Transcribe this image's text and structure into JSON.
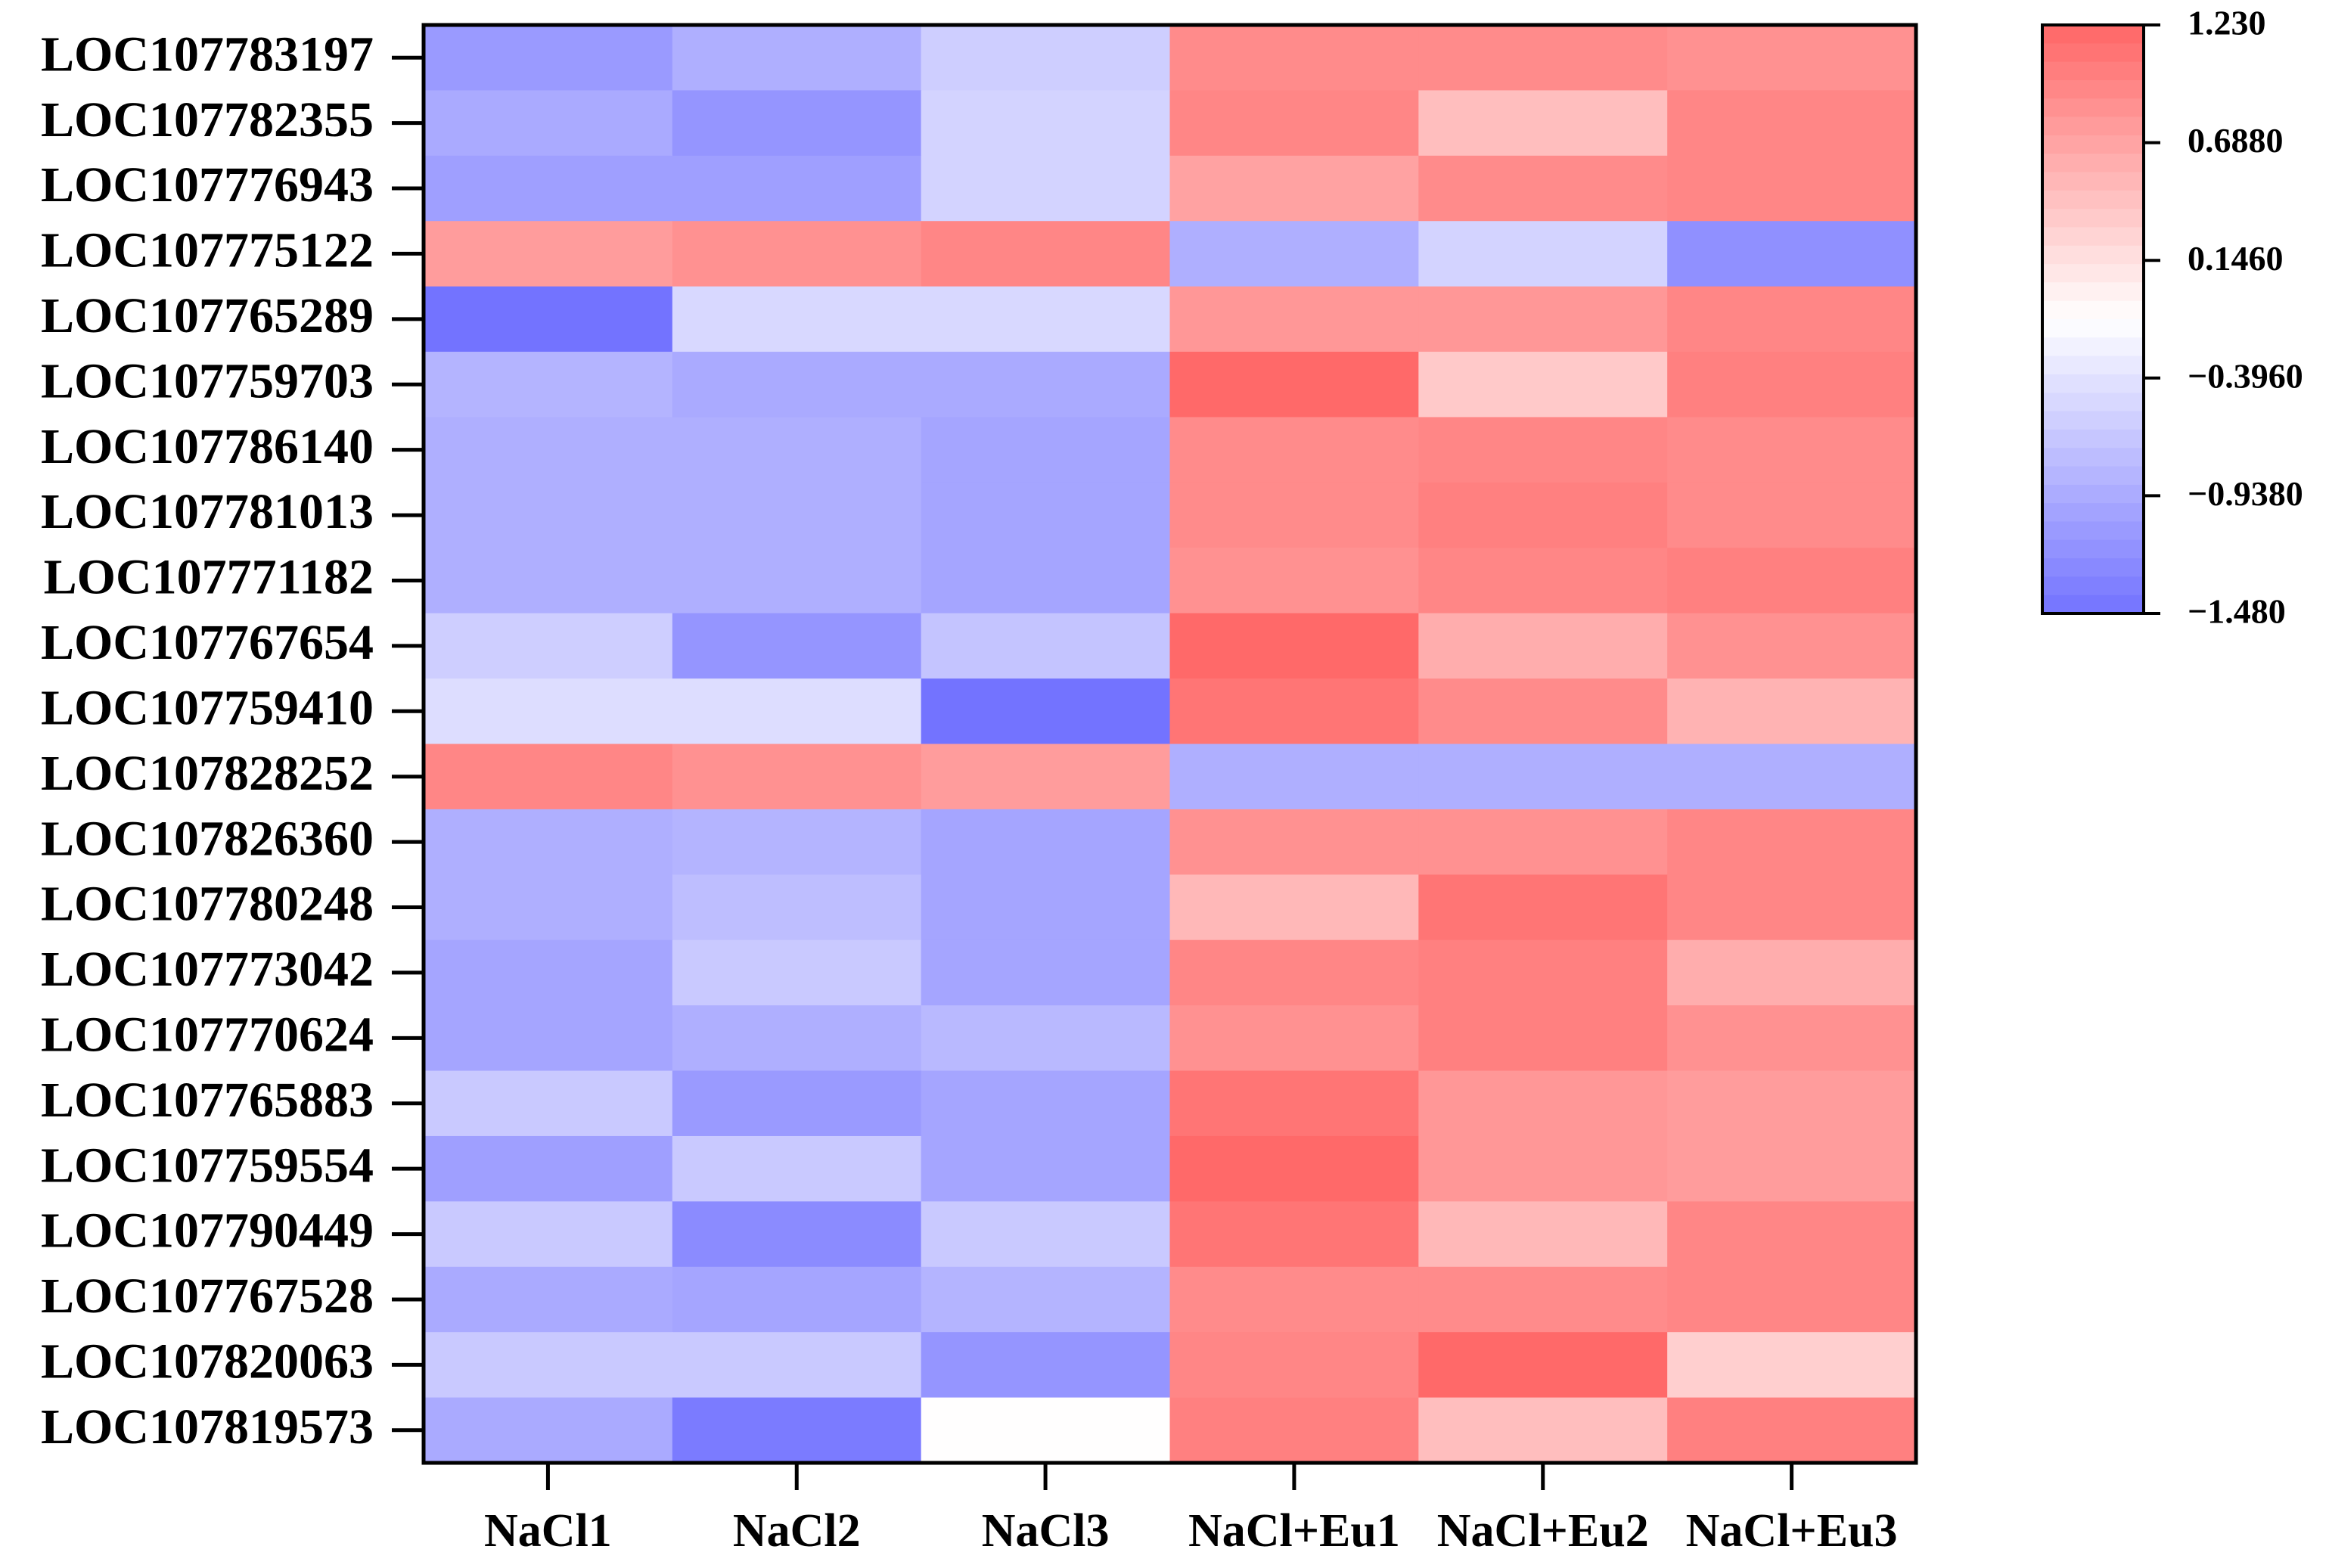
{
  "chart_data": {
    "type": "heatmap",
    "x_categories": [
      "NaCl1",
      "NaCl2",
      "NaCl3",
      "NaCl+Eu1",
      "NaCl+Eu2",
      "NaCl+Eu3"
    ],
    "y_categories": [
      "LOC107783197",
      "LOC107782355",
      "LOC107776943",
      "LOC107775122",
      "LOC107765289",
      "LOC107759703",
      "LOC107786140",
      "LOC107781013",
      "LOC107771182",
      "LOC107767654",
      "LOC107759410",
      "LOC107828252",
      "LOC107826360",
      "LOC107780248",
      "LOC107773042",
      "LOC107770624",
      "LOC107765883",
      "LOC107759554",
      "LOC107790449",
      "LOC107767528",
      "LOC107820063",
      "LOC107819573"
    ],
    "values": [
      [
        -1.1,
        -0.9,
        -0.6,
        0.9,
        0.9,
        0.85
      ],
      [
        -0.95,
        -1.15,
        -0.55,
        0.95,
        0.45,
        0.95
      ],
      [
        -1.05,
        -1.05,
        -0.55,
        0.7,
        0.9,
        0.95
      ],
      [
        0.75,
        0.85,
        0.95,
        -0.9,
        -0.55,
        -1.2
      ],
      [
        -1.48,
        -0.5,
        -0.5,
        0.8,
        0.8,
        0.95
      ],
      [
        -0.85,
        -0.95,
        -0.95,
        1.2,
        0.35,
        1.0
      ],
      [
        -0.9,
        -0.9,
        -1.0,
        0.9,
        0.95,
        0.9
      ],
      [
        -0.9,
        -0.9,
        -1.0,
        0.9,
        1.0,
        0.9
      ],
      [
        -0.9,
        -0.9,
        -1.0,
        0.85,
        0.95,
        1.0
      ],
      [
        -0.6,
        -1.15,
        -0.7,
        1.2,
        0.6,
        0.85
      ],
      [
        -0.45,
        -0.45,
        -1.48,
        1.1,
        0.9,
        0.55
      ],
      [
        0.95,
        0.85,
        0.75,
        -0.9,
        -0.9,
        -0.9
      ],
      [
        -0.9,
        -0.85,
        -1.0,
        0.85,
        0.85,
        0.95
      ],
      [
        -0.9,
        -0.75,
        -1.0,
        0.5,
        1.1,
        0.95
      ],
      [
        -1.0,
        -0.65,
        -1.0,
        0.95,
        1.0,
        0.6
      ],
      [
        -1.0,
        -0.9,
        -0.8,
        0.85,
        1.0,
        0.85
      ],
      [
        -0.65,
        -1.1,
        -1.0,
        1.1,
        0.8,
        0.75
      ],
      [
        -1.05,
        -0.65,
        -1.0,
        1.2,
        0.8,
        0.75
      ],
      [
        -0.65,
        -1.25,
        -0.65,
        1.1,
        0.5,
        0.95
      ],
      [
        -0.95,
        -1.0,
        -0.85,
        0.9,
        0.9,
        0.95
      ],
      [
        -0.65,
        -0.65,
        -1.15,
        0.95,
        1.2,
        0.3
      ],
      [
        -0.95,
        -1.4,
        -0.12,
        1.0,
        0.45,
        1.0
      ]
    ],
    "zlim": [
      -1.48,
      1.23
    ],
    "zticks": [
      {
        "value": 1.23,
        "label": "1.230"
      },
      {
        "value": 0.688,
        "label": "0.6880"
      },
      {
        "value": 0.146,
        "label": "0.1460"
      },
      {
        "value": -0.396,
        "label": "−0.3960"
      },
      {
        "value": -0.938,
        "label": "−0.9380"
      },
      {
        "value": -1.48,
        "label": "−1.480"
      }
    ],
    "colors": [
      "#7373ff",
      "#ffffff",
      "#ff6666"
    ]
  }
}
